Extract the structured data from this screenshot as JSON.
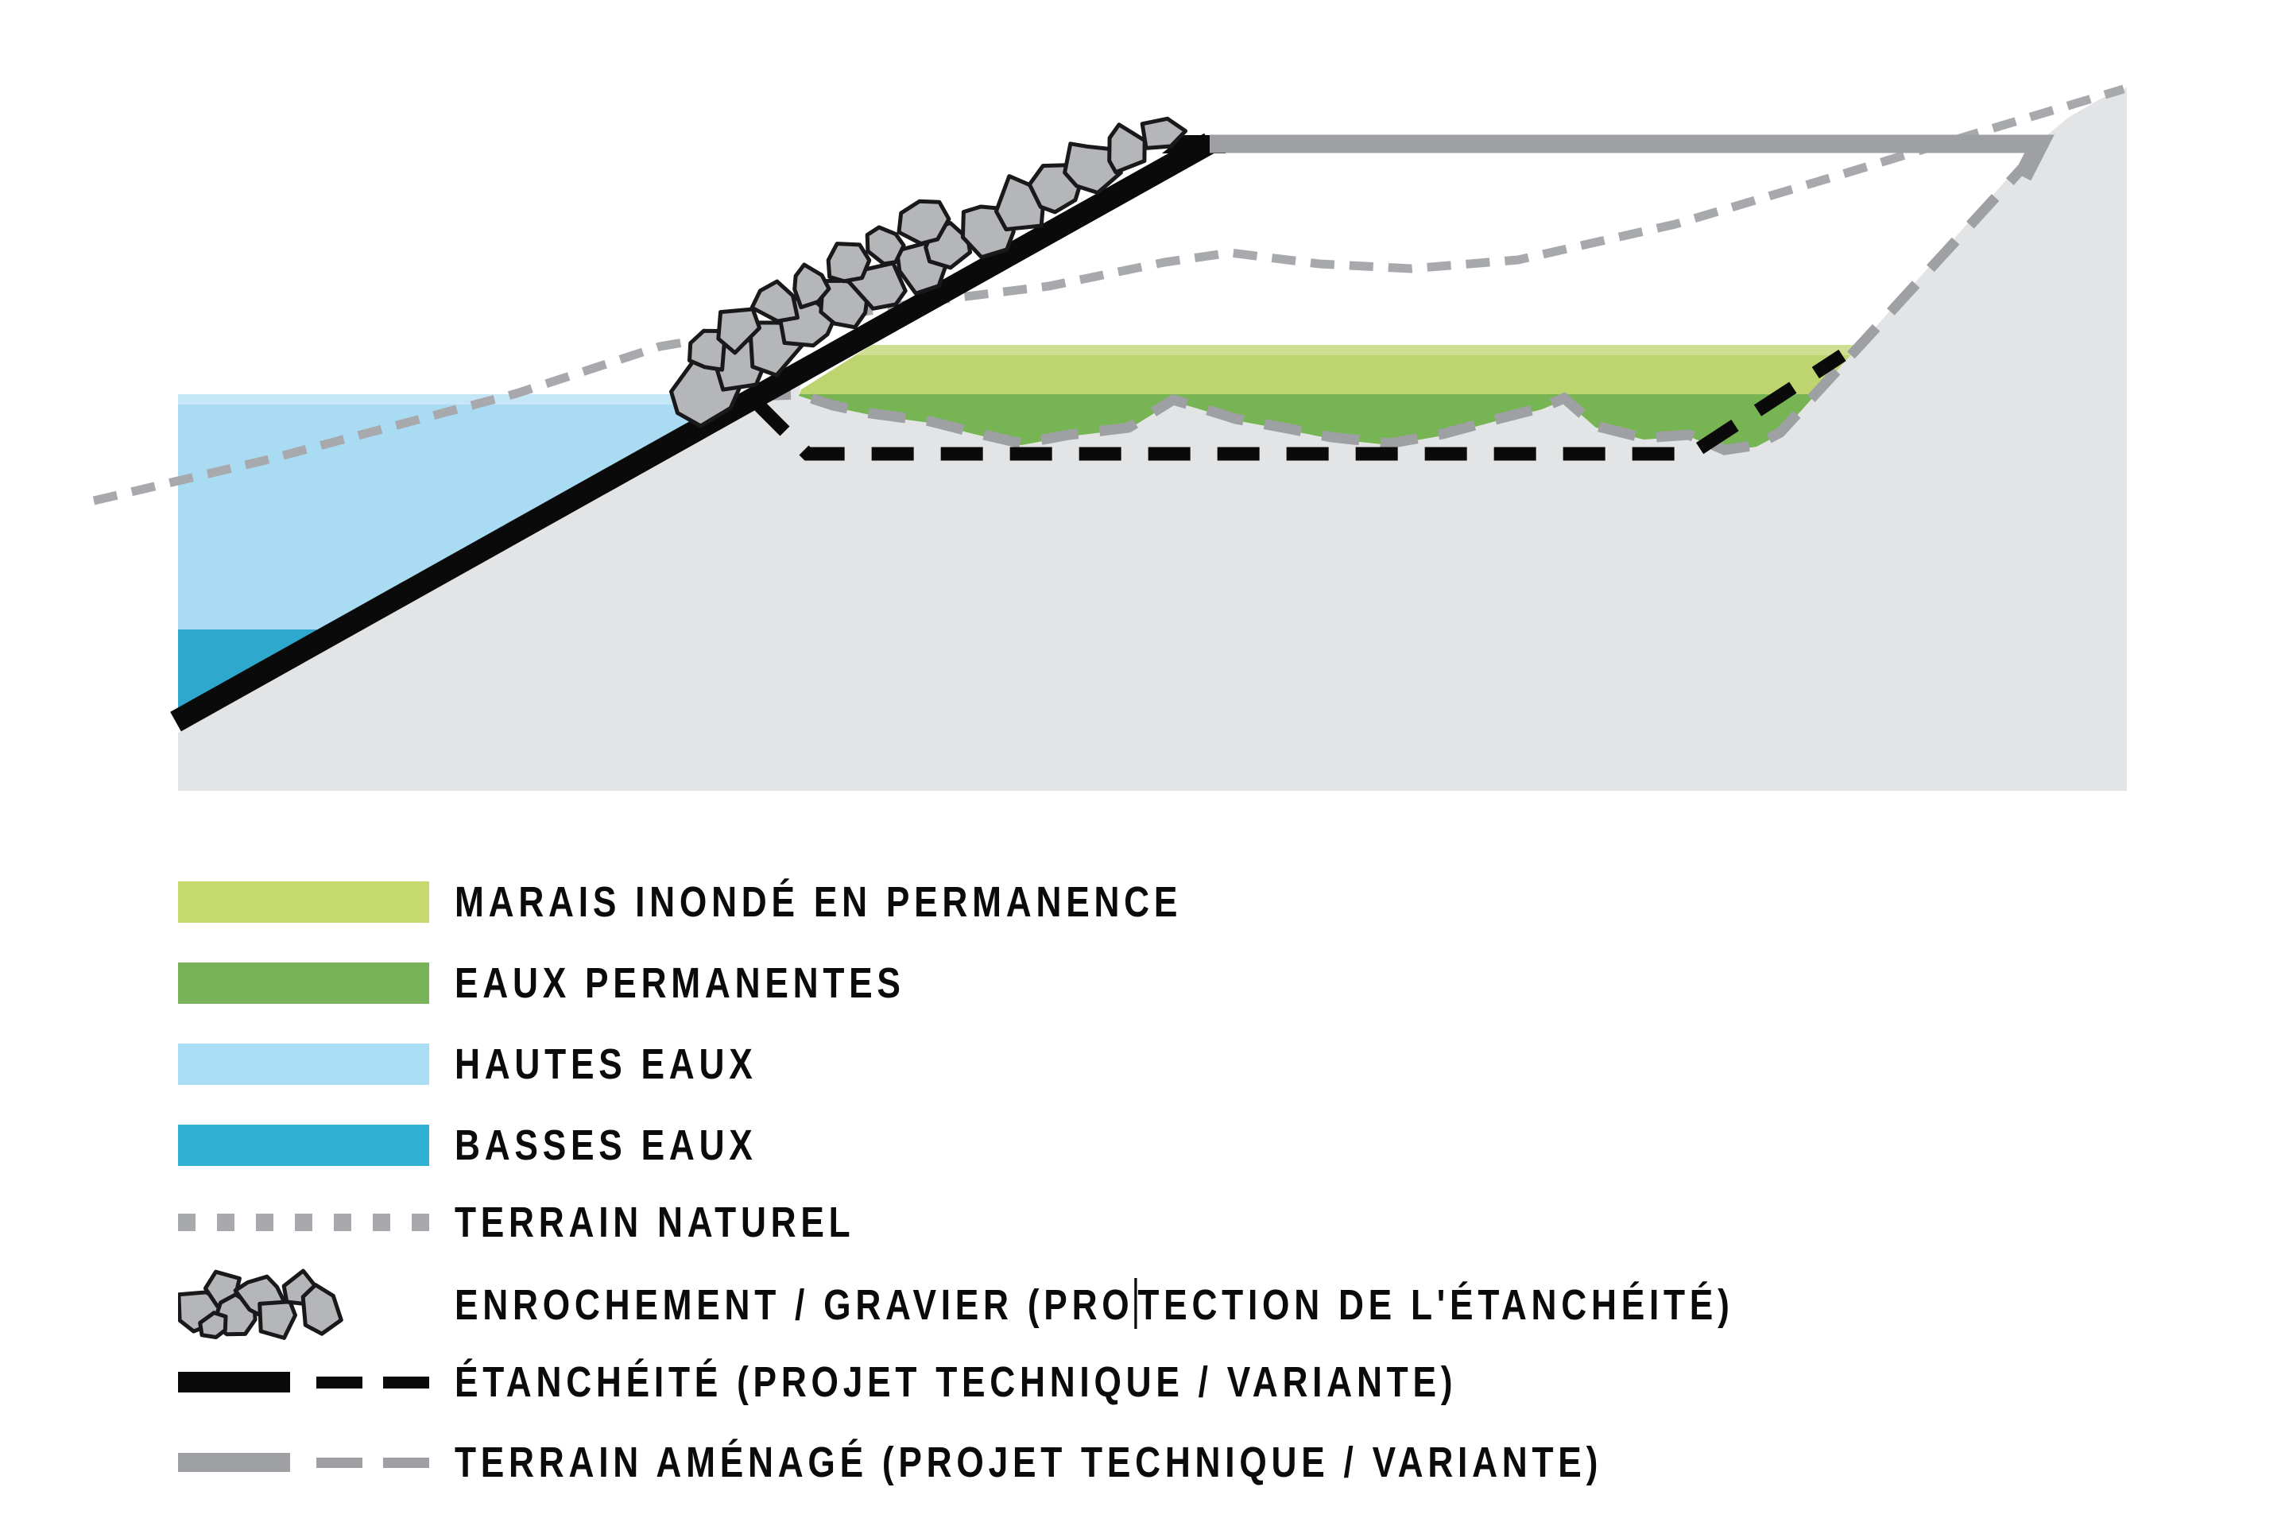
{
  "legend": {
    "items": [
      {
        "id": "marais",
        "label": "MARAIS INONDÉ EN PERMANENCE",
        "color": "#c5d96d"
      },
      {
        "id": "eaux-permanentes",
        "label": "EAUX PERMANENTES",
        "color": "#78b35a"
      },
      {
        "id": "hautes-eaux",
        "label": "HAUTES EAUX",
        "color": "#aadef7"
      },
      {
        "id": "basses-eaux",
        "label": "BASSES EAUX",
        "color": "#30b0d4"
      },
      {
        "id": "terrain-naturel",
        "label": "TERRAIN NATUREL",
        "color": "#a7a9ac"
      },
      {
        "id": "enrochement",
        "label_before_caret": "ENROCHEMENT / GRAVIER (PRO",
        "label_after_caret": "TECTION DE L'ÉTANCHÉITÉ)",
        "rock_fill": "#b4b6b8",
        "rock_stroke": "#19191b"
      },
      {
        "id": "etancheite",
        "label": "ÉTANCHÉITÉ (PROJET TECHNIQUE / VARIANTE)",
        "color": "#0a0a0a"
      },
      {
        "id": "terrain-amenage",
        "label": "TERRAIN AMÉNAGÉ (PROJET TECHNIQUE / VARIANTE)",
        "color": "#9ea0a3"
      }
    ]
  },
  "diagram": {
    "colors": {
      "terrain_fill": "#e3e4e6",
      "hautes_eaux": "#a9dcf3",
      "hautes_eaux_light_edge": "#c4e6f7",
      "basses_eaux": "#2ea9cd",
      "marais_inonde": "#bed56f",
      "marais_inonde_light_edge": "#cfdf92",
      "eaux_permanentes": "#77b453",
      "terrain_naturel_line": "#a7a9ac",
      "terrain_amenage_line": "#9ea0a3",
      "etancheite_line": "#0a0a0a",
      "rock_fill": "#b4b6b8",
      "rock_stroke": "#19191b"
    }
  }
}
